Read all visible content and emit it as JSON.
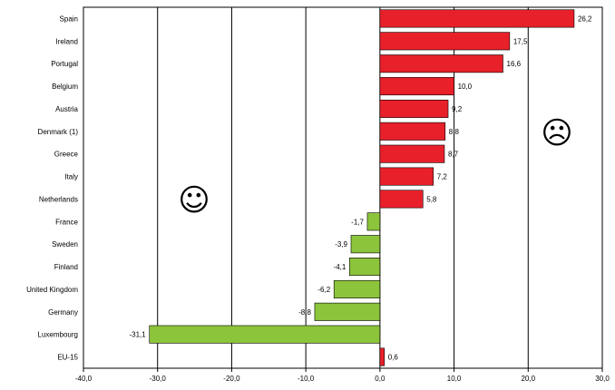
{
  "chart_data": {
    "type": "bar",
    "orientation": "horizontal",
    "title": "",
    "xlabel": "",
    "ylabel": "",
    "xlim": [
      -40,
      30
    ],
    "grid": "vertical",
    "categories": [
      "Spain",
      "Ireland",
      "Portugal",
      "Belgium",
      "Austria",
      "Denmark (1)",
      "Greece",
      "Italy",
      "Netherlands",
      "France",
      "Sweden",
      "Finland",
      "United Kingdom",
      "Germany",
      "Luxembourg",
      "EU-15"
    ],
    "values": [
      26.2,
      17.5,
      16.6,
      10.0,
      9.2,
      8.8,
      8.7,
      7.2,
      5.8,
      -1.7,
      -3.9,
      -4.1,
      -6.2,
      -8.8,
      -31.1,
      0.6
    ],
    "value_labels": [
      "26,2",
      "17,5",
      "16,6",
      "10,0",
      "9,2",
      "8,8",
      "8,7",
      "7,2",
      "5,8",
      "-1,7",
      "-3,9",
      "-4,1",
      "-6,2",
      "-8,8",
      "-31,1",
      "0,6"
    ],
    "x_ticks": [
      -40,
      -30,
      -20,
      -10,
      0,
      10,
      20,
      30
    ],
    "x_tick_labels": [
      "-40,0",
      "-30,0",
      "-20,0",
      "-10,0",
      "0,0",
      "10,0",
      "20,0",
      "30,0"
    ],
    "colors": {
      "positive": "#e8202a",
      "negative": "#8cc43c",
      "edge": "#000000",
      "grid": "#000000"
    },
    "annotations": [
      {
        "icon": "happy-face-icon",
        "glyph": "☺"
      },
      {
        "icon": "sad-face-icon",
        "glyph": "☹"
      }
    ]
  }
}
